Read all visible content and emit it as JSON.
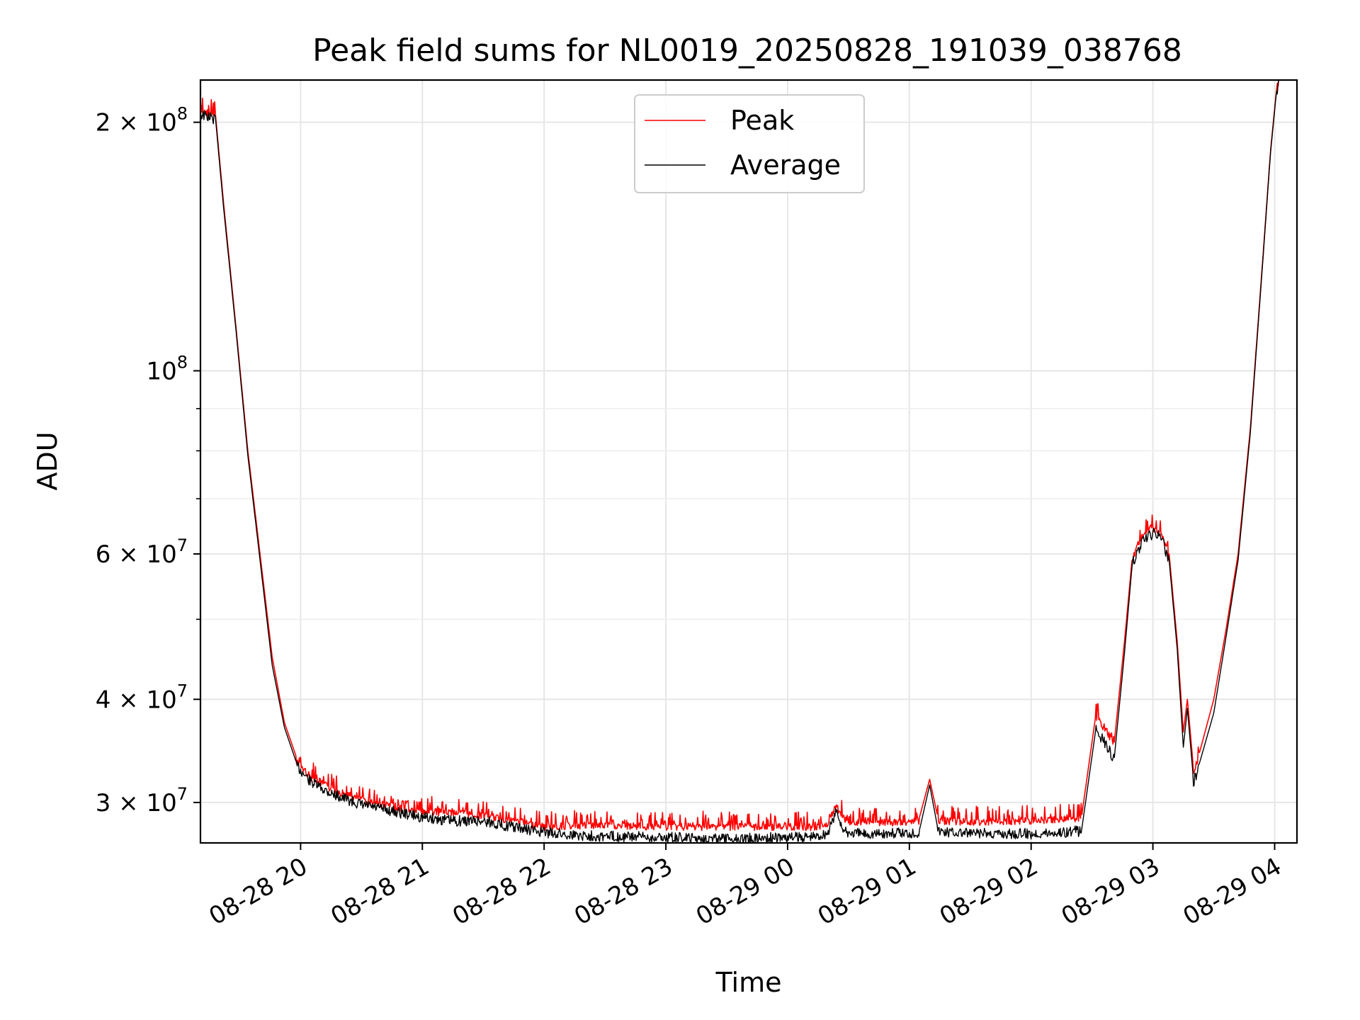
{
  "chart_data": {
    "type": "line",
    "title": "Peak field sums for NL0019_20250828_191039_038768",
    "xlabel": "Time",
    "ylabel": "ADU",
    "yscale": "log",
    "grid": true,
    "legend_position": "top-center",
    "xlim": [
      "2025-08-28T19:10:39",
      "2025-08-29T04:11:00"
    ],
    "ylim": [
      26800000,
      225000000
    ],
    "x_ticks": [
      {
        "value": "2025-08-28T20:00",
        "label": "08-28 20"
      },
      {
        "value": "2025-08-28T21:00",
        "label": "08-28 21"
      },
      {
        "value": "2025-08-28T22:00",
        "label": "08-28 22"
      },
      {
        "value": "2025-08-28T23:00",
        "label": "08-28 23"
      },
      {
        "value": "2025-08-29T00:00",
        "label": "08-29 00"
      },
      {
        "value": "2025-08-29T01:00",
        "label": "08-29 01"
      },
      {
        "value": "2025-08-29T02:00",
        "label": "08-29 02"
      },
      {
        "value": "2025-08-29T03:00",
        "label": "08-29 03"
      },
      {
        "value": "2025-08-29T04:00",
        "label": "08-29 04"
      }
    ],
    "y_ticks": [
      {
        "value": 30000000,
        "mantissa": "3",
        "exp": "7"
      },
      {
        "value": 40000000,
        "mantissa": "4",
        "exp": "7"
      },
      {
        "value": 60000000,
        "mantissa": "6",
        "exp": "7"
      },
      {
        "value": 100000000,
        "mantissa": "",
        "exp": "8"
      },
      {
        "value": 200000000,
        "mantissa": "2",
        "exp": "8"
      }
    ],
    "y_minor_ticks": [
      50000000,
      70000000,
      80000000,
      90000000
    ],
    "series": [
      {
        "name": "Peak",
        "color": "#ff0000",
        "x": [
          "2025-08-28T19:10:39",
          "2025-08-28T19:13",
          "2025-08-28T19:16",
          "2025-08-28T19:18",
          "2025-08-28T19:22",
          "2025-08-28T19:28",
          "2025-08-28T19:34",
          "2025-08-28T19:40",
          "2025-08-28T19:46",
          "2025-08-28T19:52",
          "2025-08-28T19:58",
          "2025-08-28T20:05",
          "2025-08-28T20:15",
          "2025-08-28T20:30",
          "2025-08-28T20:45",
          "2025-08-28T21:00",
          "2025-08-28T21:15",
          "2025-08-28T21:30",
          "2025-08-28T21:45",
          "2025-08-28T22:00",
          "2025-08-28T22:15",
          "2025-08-28T22:30",
          "2025-08-28T23:00",
          "2025-08-28T23:30",
          "2025-08-29T00:00",
          "2025-08-29T00:15",
          "2025-08-29T00:20",
          "2025-08-29T00:24",
          "2025-08-29T00:28",
          "2025-08-29T00:35",
          "2025-08-29T00:50",
          "2025-08-29T01:05",
          "2025-08-29T01:10",
          "2025-08-29T01:14",
          "2025-08-29T01:30",
          "2025-08-29T02:00",
          "2025-08-29T02:25",
          "2025-08-29T02:32",
          "2025-08-29T02:37",
          "2025-08-29T02:41",
          "2025-08-29T02:46",
          "2025-08-29T02:50",
          "2025-08-29T02:55",
          "2025-08-29T03:00",
          "2025-08-29T03:04",
          "2025-08-29T03:08",
          "2025-08-29T03:12",
          "2025-08-29T03:15",
          "2025-08-29T03:17",
          "2025-08-29T03:20",
          "2025-08-29T03:23",
          "2025-08-29T03:30",
          "2025-08-29T03:36",
          "2025-08-29T03:42",
          "2025-08-29T03:48",
          "2025-08-29T03:54",
          "2025-08-29T03:58",
          "2025-08-29T04:01",
          "2025-08-29T04:02"
        ],
        "y": [
          208000000,
          207000000,
          206000000,
          205000000,
          160000000,
          114000000,
          80000000,
          60000000,
          45000000,
          37500000,
          34000000,
          32500000,
          31500000,
          30500000,
          30000000,
          29500000,
          29500000,
          29200000,
          28800000,
          28300000,
          28400000,
          28400000,
          28300000,
          28300000,
          28300000,
          28300000,
          28600000,
          30000000,
          28800000,
          28600000,
          28600000,
          28800000,
          32000000,
          28800000,
          28700000,
          28800000,
          29000000,
          38500000,
          37000000,
          35500000,
          47000000,
          60000000,
          64000000,
          65000000,
          64500000,
          60000000,
          47000000,
          36500000,
          40000000,
          33000000,
          34500000,
          40000000,
          48500000,
          60000000,
          85000000,
          135000000,
          185000000,
          220000000,
          225000000
        ]
      },
      {
        "name": "Average",
        "color": "#000000",
        "x": [
          "2025-08-28T19:10:39",
          "2025-08-28T19:13",
          "2025-08-28T19:16",
          "2025-08-28T19:18",
          "2025-08-28T19:22",
          "2025-08-28T19:28",
          "2025-08-28T19:34",
          "2025-08-28T19:40",
          "2025-08-28T19:46",
          "2025-08-28T19:52",
          "2025-08-28T19:58",
          "2025-08-28T20:05",
          "2025-08-28T20:15",
          "2025-08-28T20:30",
          "2025-08-28T20:45",
          "2025-08-28T21:00",
          "2025-08-28T21:15",
          "2025-08-28T21:30",
          "2025-08-28T21:45",
          "2025-08-28T22:00",
          "2025-08-28T22:15",
          "2025-08-28T22:30",
          "2025-08-28T23:00",
          "2025-08-28T23:30",
          "2025-08-29T00:00",
          "2025-08-29T00:15",
          "2025-08-29T00:20",
          "2025-08-29T00:24",
          "2025-08-29T00:28",
          "2025-08-29T00:35",
          "2025-08-29T00:50",
          "2025-08-29T01:05",
          "2025-08-29T01:10",
          "2025-08-29T01:14",
          "2025-08-29T01:30",
          "2025-08-29T02:00",
          "2025-08-29T02:25",
          "2025-08-29T02:32",
          "2025-08-29T02:37",
          "2025-08-29T02:41",
          "2025-08-29T02:46",
          "2025-08-29T02:50",
          "2025-08-29T02:55",
          "2025-08-29T03:00",
          "2025-08-29T03:04",
          "2025-08-29T03:08",
          "2025-08-29T03:12",
          "2025-08-29T03:15",
          "2025-08-29T03:17",
          "2025-08-29T03:20",
          "2025-08-29T03:23",
          "2025-08-29T03:30",
          "2025-08-29T03:36",
          "2025-08-29T03:42",
          "2025-08-29T03:48",
          "2025-08-29T03:54",
          "2025-08-29T03:58",
          "2025-08-29T04:01",
          "2025-08-29T04:02"
        ],
        "y": [
          206000000,
          205000000,
          204000000,
          203000000,
          158000000,
          113000000,
          79000000,
          59000000,
          44000000,
          37000000,
          33500000,
          32000000,
          31000000,
          30000000,
          29500000,
          29000000,
          28700000,
          28700000,
          28200000,
          27800000,
          27600000,
          27500000,
          27400000,
          27300000,
          27400000,
          27500000,
          27800000,
          29500000,
          27800000,
          27700000,
          27700000,
          27800000,
          31500000,
          27900000,
          27700000,
          27700000,
          27900000,
          37000000,
          35500000,
          34000000,
          45500000,
          59000000,
          62500000,
          64000000,
          63500000,
          59000000,
          46000000,
          35000000,
          39000000,
          32000000,
          33500000,
          38500000,
          47500000,
          59000000,
          84000000,
          134000000,
          184000000,
          219000000,
          225000000
        ]
      }
    ]
  }
}
